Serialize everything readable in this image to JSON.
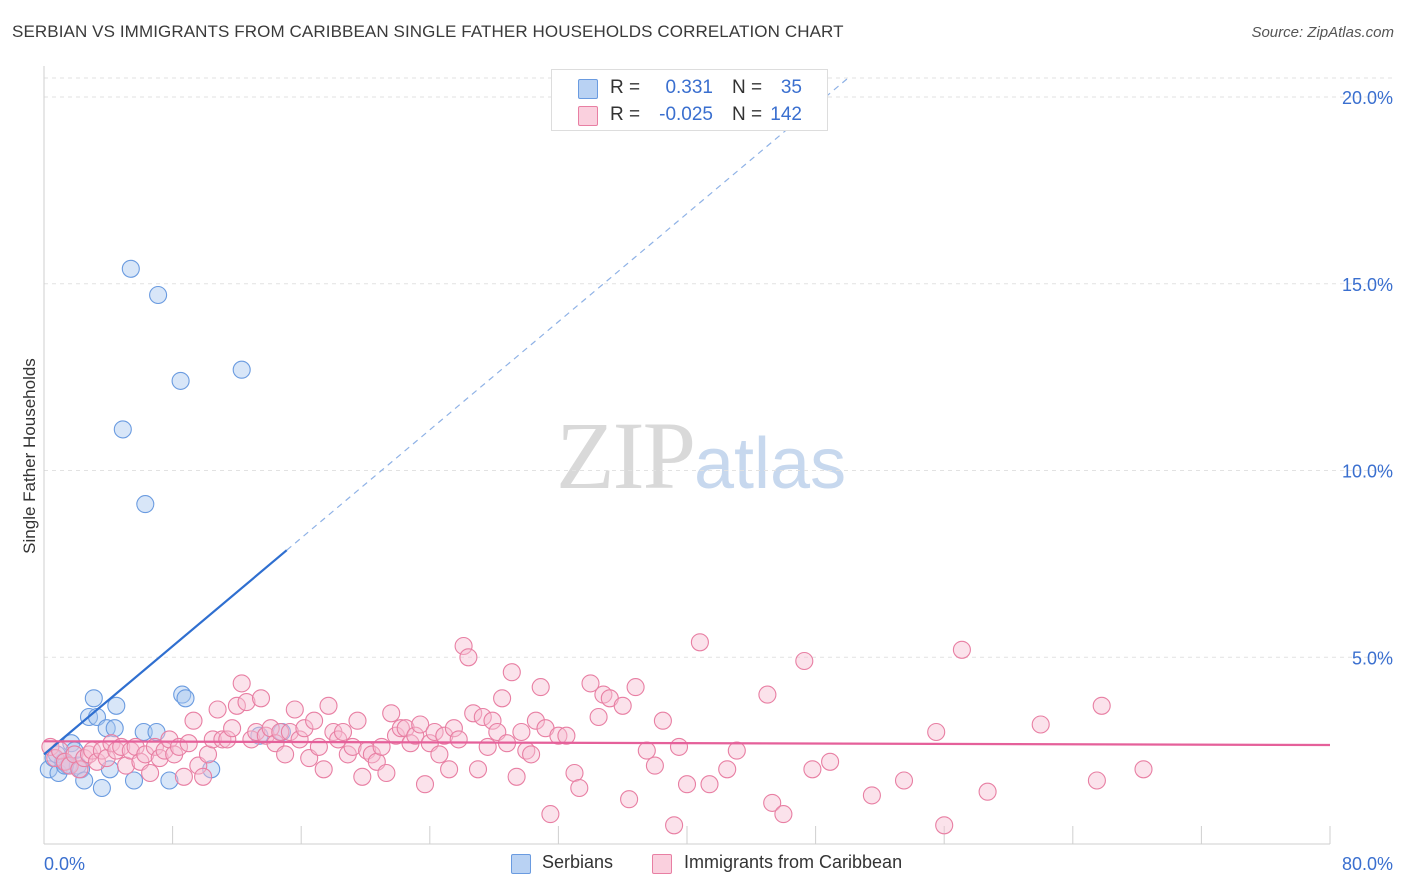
{
  "header": {
    "title": "SERBIAN VS IMMIGRANTS FROM CARIBBEAN SINGLE FATHER HOUSEHOLDS CORRELATION CHART",
    "source": "Source: ZipAtlas.com"
  },
  "watermark": {
    "zip": "ZIP",
    "atlas": "atlas"
  },
  "legend": {
    "r_label": "R =",
    "n_label": "N =",
    "series": [
      {
        "name": "Serbians",
        "r": "0.331",
        "n": "35",
        "color": "#a9c8f0",
        "stroke": "#6a9be0"
      },
      {
        "name": "Immigrants from Caribbean",
        "r": "-0.025",
        "n": "142",
        "color": "#f7bfd2",
        "stroke": "#e87fa3"
      }
    ]
  },
  "chart_data": {
    "type": "scatter",
    "title": "SERBIAN VS IMMIGRANTS FROM CARIBBEAN SINGLE FATHER HOUSEHOLDS CORRELATION CHART",
    "xlabel": "",
    "ylabel": "Single Father Households",
    "xlim": [
      0,
      80
    ],
    "ylim": [
      0,
      20.5
    ],
    "x_tick_labels": [
      "0.0%",
      "80.0%"
    ],
    "y_ticks": [
      5,
      10,
      15,
      20
    ],
    "y_tick_labels": [
      "5.0%",
      "10.0%",
      "15.0%",
      "20.0%"
    ],
    "grid": true,
    "legend_position": "top-center",
    "series": [
      {
        "name": "Serbians",
        "color": "#6a9be0",
        "trend": {
          "x0": 0,
          "y0": 2.4,
          "x1": 50,
          "y1": 20.5,
          "solid_until_x": 15.1
        },
        "points": [
          [
            0.3,
            2.0
          ],
          [
            0.6,
            2.3
          ],
          [
            0.9,
            1.9
          ],
          [
            1.2,
            2.2
          ],
          [
            1.5,
            2.1
          ],
          [
            1.7,
            2.7
          ],
          [
            1.9,
            2.5
          ],
          [
            2.1,
            2.1
          ],
          [
            2.3,
            2.0
          ],
          [
            2.5,
            1.7
          ],
          [
            2.8,
            3.4
          ],
          [
            3.1,
            3.9
          ],
          [
            3.3,
            3.4
          ],
          [
            3.6,
            1.5
          ],
          [
            3.9,
            3.1
          ],
          [
            4.1,
            2.0
          ],
          [
            4.4,
            3.1
          ],
          [
            4.5,
            3.7
          ],
          [
            4.9,
            11.1
          ],
          [
            5.4,
            15.4
          ],
          [
            5.6,
            1.7
          ],
          [
            6.2,
            3.0
          ],
          [
            6.3,
            9.1
          ],
          [
            7.0,
            3.0
          ],
          [
            7.1,
            14.7
          ],
          [
            7.8,
            1.7
          ],
          [
            8.5,
            12.4
          ],
          [
            8.6,
            4.0
          ],
          [
            8.8,
            3.9
          ],
          [
            10.4,
            2.0
          ],
          [
            12.3,
            12.7
          ],
          [
            13.4,
            2.9
          ],
          [
            14.8,
            3.0
          ],
          [
            0.8,
            2.4
          ],
          [
            1.3,
            2.1
          ]
        ]
      },
      {
        "name": "Immigrants from Caribbean",
        "color": "#e87fa3",
        "trend": {
          "x0": 0,
          "y0": 2.75,
          "x1": 80,
          "y1": 2.65
        },
        "points": [
          [
            0.4,
            2.6
          ],
          [
            0.7,
            2.3
          ],
          [
            1.0,
            2.5
          ],
          [
            1.3,
            2.2
          ],
          [
            1.6,
            2.1
          ],
          [
            1.9,
            2.4
          ],
          [
            2.2,
            2.0
          ],
          [
            2.5,
            2.3
          ],
          [
            2.8,
            2.4
          ],
          [
            3.0,
            2.5
          ],
          [
            3.3,
            2.2
          ],
          [
            3.6,
            2.5
          ],
          [
            3.9,
            2.3
          ],
          [
            4.2,
            2.7
          ],
          [
            4.5,
            2.5
          ],
          [
            4.8,
            2.6
          ],
          [
            5.1,
            2.1
          ],
          [
            5.4,
            2.5
          ],
          [
            5.7,
            2.6
          ],
          [
            6.0,
            2.2
          ],
          [
            6.3,
            2.4
          ],
          [
            6.6,
            1.9
          ],
          [
            6.9,
            2.6
          ],
          [
            7.2,
            2.3
          ],
          [
            7.5,
            2.5
          ],
          [
            7.8,
            2.8
          ],
          [
            8.1,
            2.4
          ],
          [
            8.4,
            2.6
          ],
          [
            8.7,
            1.8
          ],
          [
            9.0,
            2.7
          ],
          [
            9.3,
            3.3
          ],
          [
            9.6,
            2.1
          ],
          [
            9.9,
            1.8
          ],
          [
            10.2,
            2.4
          ],
          [
            10.5,
            2.8
          ],
          [
            10.8,
            3.6
          ],
          [
            11.1,
            2.8
          ],
          [
            11.4,
            2.8
          ],
          [
            11.7,
            3.1
          ],
          [
            12.0,
            3.7
          ],
          [
            12.3,
            4.3
          ],
          [
            12.6,
            3.8
          ],
          [
            12.9,
            2.8
          ],
          [
            13.2,
            3.0
          ],
          [
            13.5,
            3.9
          ],
          [
            13.8,
            2.9
          ],
          [
            14.1,
            3.1
          ],
          [
            14.4,
            2.7
          ],
          [
            14.7,
            3.0
          ],
          [
            15.0,
            2.4
          ],
          [
            15.3,
            3.0
          ],
          [
            15.6,
            3.6
          ],
          [
            15.9,
            2.8
          ],
          [
            16.2,
            3.1
          ],
          [
            16.5,
            2.3
          ],
          [
            16.8,
            3.3
          ],
          [
            17.1,
            2.6
          ],
          [
            17.4,
            2.0
          ],
          [
            17.7,
            3.7
          ],
          [
            18.0,
            3.0
          ],
          [
            18.3,
            2.8
          ],
          [
            18.6,
            3.0
          ],
          [
            18.9,
            2.4
          ],
          [
            19.2,
            2.6
          ],
          [
            19.5,
            3.3
          ],
          [
            19.8,
            1.8
          ],
          [
            20.1,
            2.5
          ],
          [
            20.4,
            2.4
          ],
          [
            20.7,
            2.2
          ],
          [
            21.0,
            2.6
          ],
          [
            21.3,
            1.9
          ],
          [
            21.6,
            3.5
          ],
          [
            21.9,
            2.9
          ],
          [
            22.2,
            3.1
          ],
          [
            22.5,
            3.1
          ],
          [
            22.8,
            2.7
          ],
          [
            23.1,
            2.9
          ],
          [
            23.4,
            3.2
          ],
          [
            23.7,
            1.6
          ],
          [
            24.0,
            2.7
          ],
          [
            24.3,
            3.0
          ],
          [
            24.6,
            2.4
          ],
          [
            24.9,
            2.9
          ],
          [
            25.2,
            2.0
          ],
          [
            25.5,
            3.1
          ],
          [
            25.8,
            2.8
          ],
          [
            26.1,
            5.3
          ],
          [
            26.4,
            5.0
          ],
          [
            26.7,
            3.5
          ],
          [
            27.0,
            2.0
          ],
          [
            27.3,
            3.4
          ],
          [
            27.6,
            2.6
          ],
          [
            27.9,
            3.3
          ],
          [
            28.2,
            3.0
          ],
          [
            28.5,
            3.9
          ],
          [
            28.8,
            2.7
          ],
          [
            29.1,
            4.6
          ],
          [
            29.4,
            1.8
          ],
          [
            29.7,
            3.0
          ],
          [
            30.0,
            2.5
          ],
          [
            30.3,
            2.4
          ],
          [
            30.6,
            3.3
          ],
          [
            30.9,
            4.2
          ],
          [
            31.2,
            3.1
          ],
          [
            31.5,
            0.8
          ],
          [
            32.0,
            2.9
          ],
          [
            32.5,
            2.9
          ],
          [
            33.0,
            1.9
          ],
          [
            33.3,
            1.5
          ],
          [
            34.0,
            4.3
          ],
          [
            34.5,
            3.4
          ],
          [
            34.8,
            4.0
          ],
          [
            35.2,
            3.9
          ],
          [
            36.0,
            3.7
          ],
          [
            36.4,
            1.2
          ],
          [
            36.8,
            4.2
          ],
          [
            37.5,
            2.5
          ],
          [
            38.0,
            2.1
          ],
          [
            38.5,
            3.3
          ],
          [
            39.2,
            0.5
          ],
          [
            39.5,
            2.6
          ],
          [
            40.0,
            1.6
          ],
          [
            40.8,
            5.4
          ],
          [
            41.4,
            1.6
          ],
          [
            42.5,
            2.0
          ],
          [
            43.1,
            2.5
          ],
          [
            45.0,
            4.0
          ],
          [
            45.3,
            1.1
          ],
          [
            46.0,
            0.8
          ],
          [
            47.3,
            4.9
          ],
          [
            47.8,
            2.0
          ],
          [
            48.9,
            2.2
          ],
          [
            51.5,
            1.3
          ],
          [
            53.5,
            1.7
          ],
          [
            55.5,
            3.0
          ],
          [
            56.0,
            0.5
          ],
          [
            57.1,
            5.2
          ],
          [
            58.7,
            1.4
          ],
          [
            62.0,
            3.2
          ],
          [
            65.5,
            1.7
          ],
          [
            65.8,
            3.7
          ],
          [
            68.4,
            2.0
          ]
        ]
      }
    ]
  }
}
